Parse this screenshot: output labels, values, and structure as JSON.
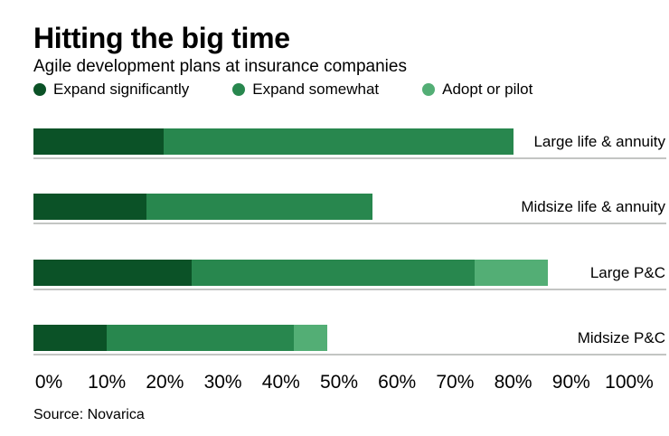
{
  "header": {
    "title": "Hitting the big time",
    "subtitle": "Agile development plans at insurance companies"
  },
  "legend": {
    "items": [
      {
        "label": "Expand significantly",
        "color": "#0b5227"
      },
      {
        "label": "Expand somewhat",
        "color": "#28874e"
      },
      {
        "label": "Adopt or pilot",
        "color": "#53ae75"
      }
    ]
  },
  "chart_data": {
    "type": "bar",
    "orientation": "horizontal",
    "stacked": true,
    "title": "Hitting the big time",
    "subtitle": "Agile development plans at insurance companies",
    "categories": [
      "Large life & annuity",
      "Midsize life & annuity",
      "Large P&C",
      "Midsize P&C"
    ],
    "series": [
      {
        "name": "Expand significantly",
        "color": "#0b5227",
        "values": [
          23,
          20,
          28,
          13
        ]
      },
      {
        "name": "Expand somewhat",
        "color": "#28874e",
        "values": [
          62,
          40,
          50,
          33
        ]
      },
      {
        "name": "Adopt or pilot",
        "color": "#53ae75",
        "values": [
          0,
          0,
          13,
          6
        ]
      }
    ],
    "totals_percent": [
      85,
      60,
      91,
      52
    ],
    "x_tick_labels": [
      "0%",
      "10%",
      "20%",
      "30%",
      "40%",
      "50%",
      "60%",
      "70%",
      "80%",
      "90%",
      "100%"
    ],
    "xlim": [
      0,
      100
    ],
    "value_unit": "%",
    "legend_position": "top",
    "grid": false,
    "baseline_color": "#c3c5c3"
  },
  "footer": {
    "source": "Source: Novarica"
  }
}
